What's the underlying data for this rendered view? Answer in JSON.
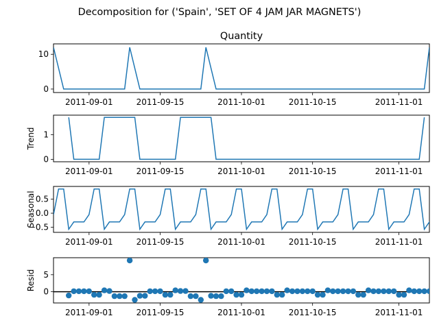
{
  "figure": {
    "suptitle": "Decomposition for ('Spain', 'SET OF 4 JAM JAR MAGNETS')"
  },
  "chart_data": [
    {
      "type": "line",
      "name": "observed",
      "title": "Quantity",
      "ylabel": "",
      "x_start": "2011-08-25",
      "x_end": "2011-11-07",
      "xticks": [
        "2011-09-01",
        "2011-09-15",
        "2011-10-01",
        "2011-10-15",
        "2011-11-01"
      ],
      "yticks": [
        0,
        10
      ],
      "ylim": [
        -1,
        13
      ],
      "color": "#1f77b4",
      "x": [
        "2011-08-25",
        "2011-08-27",
        "2011-09-07",
        "2011-09-09",
        "2011-09-22",
        "2011-09-24",
        "2011-11-06",
        "2011-11-07"
      ],
      "values": [
        12,
        0,
        0,
        12,
        0,
        12,
        0,
        12
      ],
      "points": [
        [
          "2011-08-25",
          12
        ],
        [
          "2011-08-27",
          0
        ],
        [
          "2011-09-08",
          0
        ],
        [
          "2011-09-09",
          12
        ],
        [
          "2011-09-11",
          0
        ],
        [
          "2011-09-23",
          0
        ],
        [
          "2011-09-24",
          12
        ],
        [
          "2011-09-26",
          0
        ],
        [
          "2011-11-06",
          0
        ],
        [
          "2011-11-07",
          12
        ]
      ]
    },
    {
      "type": "line",
      "name": "trend",
      "title": "",
      "ylabel": "Trend",
      "x_start": "2011-08-25",
      "x_end": "2011-11-07",
      "xticks": [
        "2011-09-01",
        "2011-09-15",
        "2011-10-01",
        "2011-10-15",
        "2011-11-01"
      ],
      "yticks": [
        0,
        1
      ],
      "ylim": [
        -0.1,
        1.8
      ],
      "color": "#1f77b4",
      "points": [
        [
          "2011-08-28",
          1.71
        ],
        [
          "2011-08-29",
          0
        ],
        [
          "2011-09-03",
          0
        ],
        [
          "2011-09-04",
          1.71
        ],
        [
          "2011-09-10",
          1.71
        ],
        [
          "2011-09-11",
          0
        ],
        [
          "2011-09-18",
          0
        ],
        [
          "2011-09-19",
          1.71
        ],
        [
          "2011-09-25",
          1.71
        ],
        [
          "2011-09-26",
          0
        ],
        [
          "2011-11-05",
          0
        ],
        [
          "2011-11-06",
          1.71
        ]
      ]
    },
    {
      "type": "line",
      "name": "seasonal",
      "title": "",
      "ylabel": "Seasonal",
      "x_start": "2011-08-25",
      "x_end": "2011-11-07",
      "xticks": [
        "2011-09-01",
        "2011-09-15",
        "2011-10-01",
        "2011-10-15",
        "2011-11-01"
      ],
      "yticks": [
        -0.5,
        0.0,
        0.5
      ],
      "ytick_labels": [
        "−0.5",
        "0.0",
        "0.5"
      ],
      "ylim": [
        -0.68,
        0.95
      ],
      "color": "#1f77b4",
      "period_days": 7,
      "first_date": "2011-08-25",
      "pattern": [
        -0.05,
        0.86,
        0.86,
        -0.57,
        -0.31,
        -0.31,
        -0.31
      ]
    },
    {
      "type": "scatter",
      "name": "resid",
      "title": "",
      "ylabel": "Resid",
      "x_start": "2011-08-25",
      "x_end": "2011-11-07",
      "xticks": [
        "2011-09-01",
        "2011-09-15",
        "2011-10-01",
        "2011-10-15",
        "2011-11-01"
      ],
      "yticks": [
        0,
        5
      ],
      "ylim": [
        -3.3,
        10
      ],
      "zero_line": true,
      "color": "#1f77b4",
      "first_date": "2011-08-28",
      "values": [
        -1.1,
        0.15,
        0.15,
        0.15,
        0.15,
        -0.9,
        -0.9,
        0.4,
        0.2,
        -1.3,
        -1.3,
        -1.3,
        9.2,
        -2.4,
        -1.2,
        -1.2,
        0.15,
        0.15,
        0.15,
        -0.9,
        -0.9,
        0.4,
        0.2,
        0.2,
        -1.3,
        -1.3,
        -2.4,
        9.2,
        -1.2,
        -1.3,
        -1.3,
        0.15,
        0.15,
        -0.9,
        -0.9,
        0.4,
        0.15,
        0.15,
        0.15,
        0.15,
        0.15,
        -0.9,
        -0.9,
        0.4,
        0.15,
        0.15,
        0.15,
        0.15,
        0.15,
        -0.9,
        -0.9,
        0.4,
        0.15,
        0.15,
        0.15,
        0.15,
        0.15,
        -0.9,
        -0.9,
        0.4,
        0.15,
        0.15,
        0.15,
        0.15,
        0.15,
        -0.9,
        -0.9,
        0.4,
        0.15,
        0.15,
        0.15,
        0.15,
        0.15,
        -0.9,
        -0.9,
        0.4
      ]
    }
  ]
}
